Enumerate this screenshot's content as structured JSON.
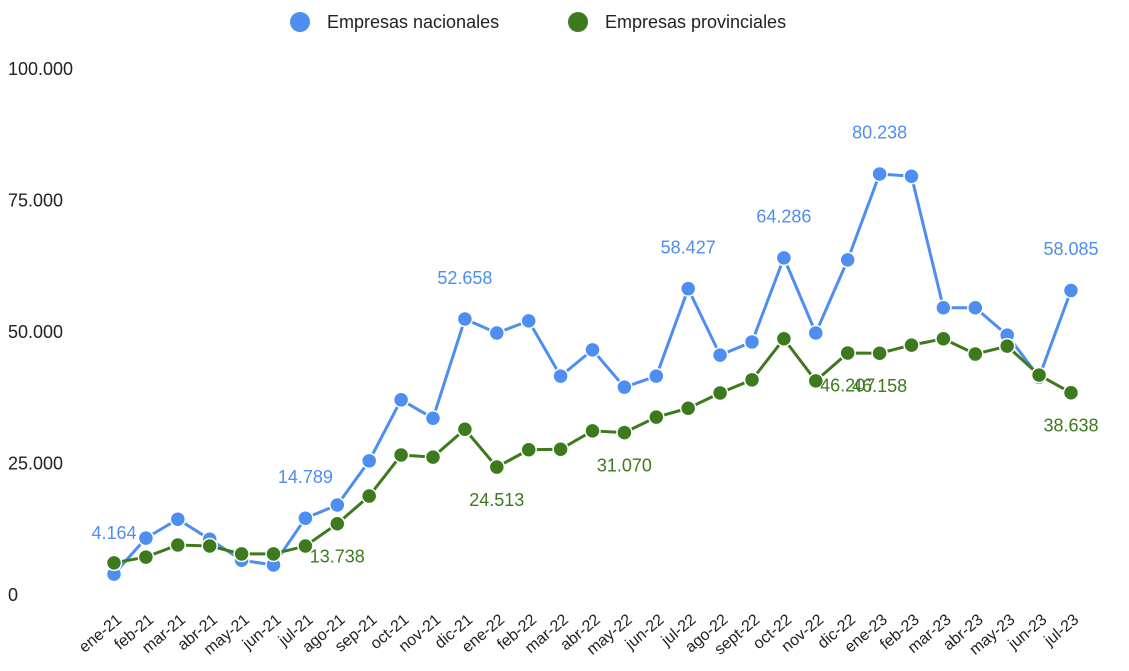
{
  "chart_data": {
    "type": "line",
    "categories": [
      "ene-21",
      "feb-21",
      "mar-21",
      "abr-21",
      "may-21",
      "jun-21",
      "jul-21",
      "ago-21",
      "sep-21",
      "oct-21",
      "nov-21",
      "dic-21",
      "ene-22",
      "feb-22",
      "mar-22",
      "abr-22",
      "may-22",
      "jun-22",
      "jul-22",
      "ago-22",
      "sept-22",
      "oct-22",
      "nov-22",
      "dic-22",
      "ene-23",
      "feb-23",
      "mar-23",
      "abr-23",
      "may-23",
      "jun-23",
      "jul-23"
    ],
    "series": [
      {
        "name": "Empresas nacionales",
        "color": "#4e8ef0",
        "values": [
          4164,
          11000,
          14600,
          10800,
          6800,
          5900,
          14789,
          17300,
          25700,
          37300,
          33800,
          52658,
          50000,
          52300,
          41800,
          46800,
          39700,
          41800,
          58427,
          45800,
          48300,
          64286,
          50000,
          63900,
          80238,
          79800,
          54800,
          54800,
          49600,
          41600,
          58085
        ],
        "value_labels": [
          "4.164",
          null,
          null,
          null,
          null,
          null,
          "14.789",
          null,
          null,
          null,
          null,
          "52.658",
          null,
          null,
          null,
          null,
          null,
          null,
          "58.427",
          null,
          null,
          "64.286",
          null,
          null,
          "80.238",
          null,
          null,
          null,
          null,
          null,
          "58.085"
        ]
      },
      {
        "name": "Empresas provinciales",
        "color": "#3d7a1e",
        "values": [
          6300,
          7400,
          9700,
          9500,
          8000,
          8000,
          9500,
          13738,
          19000,
          26800,
          26400,
          31700,
          24513,
          27800,
          27900,
          31400,
          31070,
          34000,
          35700,
          38600,
          41100,
          48900,
          40900,
          46207,
          46158,
          47700,
          48900,
          46000,
          47500,
          42000,
          38638
        ],
        "value_labels": [
          null,
          null,
          null,
          null,
          null,
          null,
          null,
          "13.738",
          null,
          null,
          null,
          null,
          "24.513",
          null,
          null,
          null,
          "31.070",
          null,
          null,
          null,
          null,
          null,
          null,
          "46.207",
          "46.158",
          null,
          null,
          null,
          null,
          null,
          "38.638"
        ]
      }
    ],
    "ylim": [
      0,
      100000
    ],
    "yticks": [
      0,
      {
        "value": 25000,
        "label": "25.000"
      },
      {
        "value": 50000,
        "label": "50.000"
      },
      {
        "value": 75000,
        "label": "75.000"
      },
      {
        "value": 100000,
        "label": "100.000"
      }
    ],
    "grid": false,
    "legend": "top"
  }
}
